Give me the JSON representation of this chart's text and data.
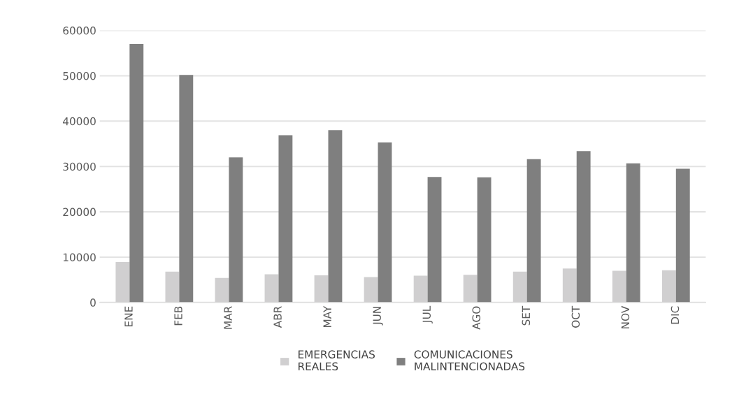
{
  "chart_data": {
    "type": "bar",
    "categories": [
      "ENE",
      "FEB",
      "MAR",
      "ABR",
      "MAY",
      "JUN",
      "JUL",
      "AGO",
      "SET",
      "OCT",
      "NOV",
      "DIC"
    ],
    "series": [
      {
        "name": "EMERGENCIAS\nREALES",
        "color": "#d0cfd0",
        "values": [
          8900,
          6800,
          5400,
          6200,
          6000,
          5600,
          5900,
          6100,
          6800,
          7500,
          7000,
          7100
        ]
      },
      {
        "name": "COMUNICACIONES\nMALINTENCIONADAS",
        "color": "#7f7f7f",
        "values": [
          57000,
          50200,
          32000,
          36900,
          38000,
          35300,
          27700,
          27600,
          31600,
          33400,
          30700,
          29500
        ]
      }
    ],
    "ylim": [
      0,
      60000
    ],
    "yticks": [
      0,
      10000,
      20000,
      30000,
      40000,
      50000,
      60000
    ],
    "grid": "y",
    "legend": "bottom"
  }
}
